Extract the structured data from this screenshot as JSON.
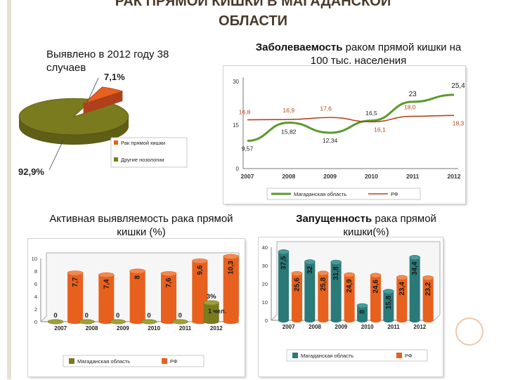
{
  "slide": {
    "title_line1": "РАК ПРЯМОЙ КИШКИ В МАГАДАНСКОЙ",
    "title_line2": "ОБЛАСТИ"
  },
  "captions": {
    "detected_line1": "Выявлено в 2012 году 38",
    "detected_line2": "случаев",
    "incidence_bold": "Заболеваемость",
    "incidence_rest": " раком прямой кишки на",
    "incidence_line2": "100 тыс. населения",
    "active_line1": "Активная выявляемость рака прямой",
    "active_line2": "кишки  (%)",
    "neglect_bold": "Запущенность",
    "neglect_rest": " рака прямой",
    "neglect_line2": "кишки(%)"
  },
  "colors": {
    "olive": "#7a7a1e",
    "orange": "#e8601e",
    "green_line": "#5a9a2e",
    "red_line": "#b4451e",
    "teal": "#2a7a7a"
  },
  "chart_data": [
    {
      "type": "pie",
      "labels": [
        "Рак прямой кишки",
        "Другие нозологии"
      ],
      "values": [
        7.1,
        92.9
      ],
      "data_labels": [
        "7,1%",
        "92,9%"
      ],
      "legend": "bottom-right"
    },
    {
      "type": "line",
      "categories": [
        "2007",
        "2008",
        "2009",
        "2010",
        "2011",
        "2012"
      ],
      "series": [
        {
          "name": "Магаданская область",
          "values": [
            9.57,
            15.82,
            12.34,
            16.5,
            23,
            25.4
          ],
          "labels": [
            "9,57",
            "15,82",
            "12,34",
            "16,5",
            "23",
            "25,4"
          ]
        },
        {
          "name": "РФ",
          "values": [
            16.8,
            16.9,
            17.6,
            16.1,
            18.0,
            18.3
          ],
          "labels": [
            "16,8",
            "16,9",
            "17,6",
            "16,1",
            "18,0",
            "18,3"
          ]
        }
      ],
      "ylim": [
        0,
        30
      ],
      "yticks": [
        "0",
        "15",
        "30"
      ],
      "legend": "bottom"
    },
    {
      "type": "bar",
      "categories": [
        "2007",
        "2008",
        "2009",
        "2010",
        "2011",
        "2012"
      ],
      "series": [
        {
          "name": "Магаданская область",
          "values": [
            0,
            0,
            0,
            0,
            0,
            3
          ],
          "labels": [
            "0",
            "0",
            "0",
            "0",
            "0",
            "3%"
          ],
          "extra_label": "1 чел."
        },
        {
          "name": "РФ",
          "values": [
            7.7,
            7.4,
            8,
            7.6,
            9.6,
            10.3
          ],
          "labels": [
            "7,7",
            "7,4",
            "8",
            "7,6",
            "9,6",
            "10,3"
          ]
        }
      ],
      "ylim": [
        0,
        10
      ],
      "yticks": [
        "0",
        "2",
        "4",
        "6",
        "8",
        "10"
      ],
      "legend": "bottom"
    },
    {
      "type": "bar",
      "categories": [
        "2007",
        "2008",
        "2009",
        "2010",
        "2011",
        "2012"
      ],
      "series": [
        {
          "name": "Магаданская область",
          "values": [
            37.5,
            32,
            31.8,
            8,
            15.8,
            34.4
          ],
          "labels": [
            "37,5",
            "32",
            "31,8",
            "8",
            "15,8",
            "34,4"
          ]
        },
        {
          "name": "РФ",
          "values": [
            25.6,
            25.8,
            24.9,
            24.6,
            23.4,
            23.2
          ],
          "labels": [
            "25,6",
            "25,8",
            "24,9",
            "24,6",
            "23,4",
            "23,2"
          ]
        }
      ],
      "ylim": [
        0,
        40
      ],
      "yticks": [
        "0",
        "10",
        "20",
        "30",
        "40"
      ],
      "legend": "bottom"
    }
  ]
}
